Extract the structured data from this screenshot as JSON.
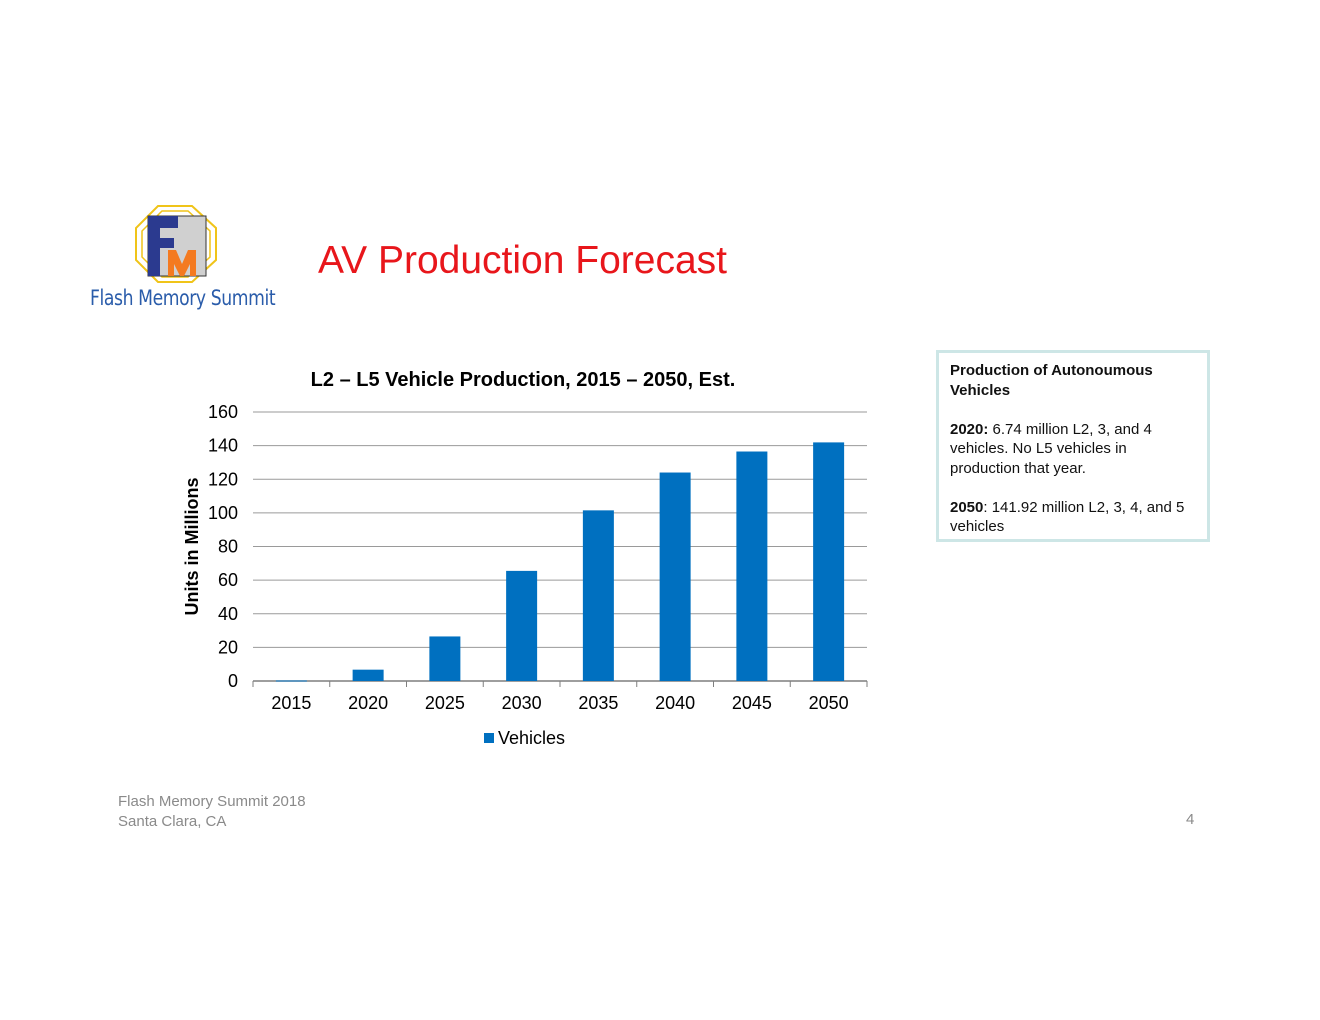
{
  "logo": {
    "text": "Flash Memory Summit"
  },
  "slide": {
    "title": "AV Production Forecast"
  },
  "chart_data": {
    "type": "bar",
    "title": "L2 – L5 Vehicle Production, 2015 – 2050, Est.",
    "xlabel": "",
    "ylabel": "Units in Millions",
    "categories": [
      "2015",
      "2020",
      "2025",
      "2030",
      "2035",
      "2040",
      "2045",
      "2050"
    ],
    "series": [
      {
        "name": "Vehicles",
        "values": [
          0.3,
          6.74,
          26.5,
          65.5,
          101.5,
          124,
          136.5,
          141.92
        ],
        "color": "#0070c0"
      }
    ],
    "ylim": [
      0,
      160
    ],
    "yticks": [
      0,
      20,
      40,
      60,
      80,
      100,
      120,
      140,
      160
    ],
    "grid": true,
    "legend": "bottom"
  },
  "info": {
    "heading": "Production of Autonoumous Vehicles",
    "year1": "2020:",
    "text1": " 6.74 million L2, 3, and 4 vehicles. No L5 vehicles in production that year.",
    "year2": "2050",
    "text2": ": 141.92 million L2, 3, 4, and 5 vehicles"
  },
  "footer": {
    "line1": "Flash Memory Summit 2018",
    "line2": "Santa Clara, CA",
    "page": "4"
  }
}
